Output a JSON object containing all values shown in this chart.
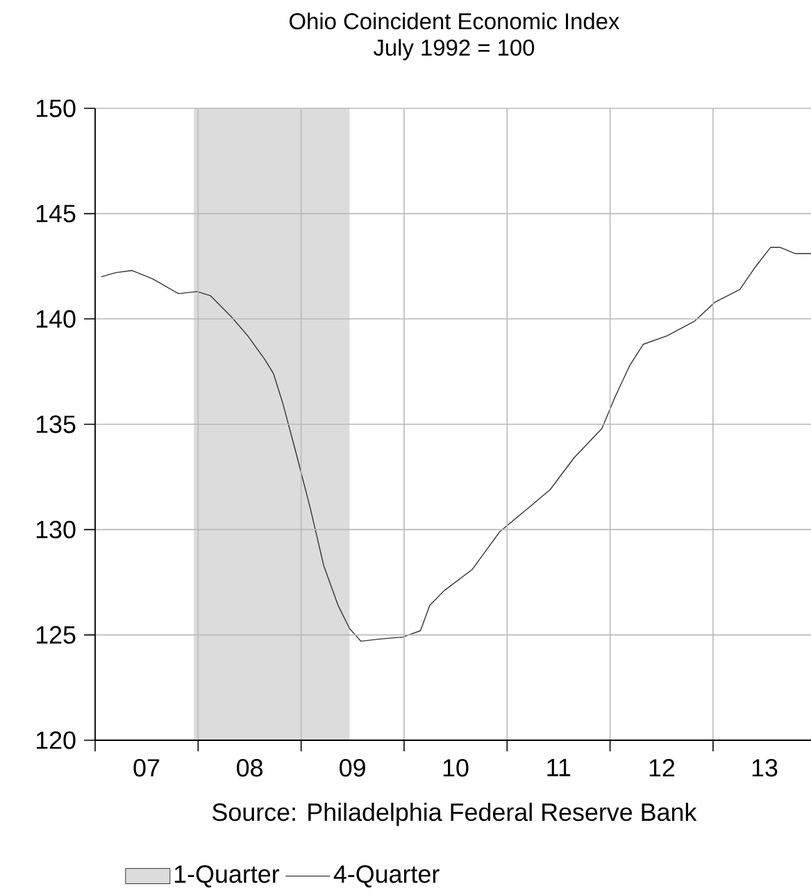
{
  "chart_data": {
    "type": "line",
    "title": "Ohio Coincident Economic Index",
    "subtitle": "July 1992 = 100",
    "annotations": [
      "Source: Philadelphia Federal Reserve Bank"
    ],
    "series": [
      {
        "name": "4-Quarter",
        "color": "#333333",
        "x": [
          "2007-01-23",
          "2007-03-15",
          "2007-05-12",
          "2007-07-24",
          "2007-10-24",
          "2007-12-28",
          "2008-02-14",
          "2008-04-28",
          "2008-06-25",
          "2008-08-23",
          "2008-09-24",
          "2008-10-27",
          "2008-12-14",
          "2009-02-03",
          "2009-03-22",
          "2009-05-12",
          "2009-06-22",
          "2009-08-01",
          "2009-10-05",
          "2009-12-28",
          "2010-02-28",
          "2010-04-02",
          "2010-05-23",
          "2010-08-30",
          "2010-12-06",
          "2011-03-15",
          "2011-06-03",
          "2011-08-26",
          "2011-12-03",
          "2012-01-19",
          "2012-03-11",
          "2012-04-28",
          "2012-07-21",
          "2012-10-27",
          "2013-01-08",
          "2013-04-06",
          "2013-05-27",
          "2013-07-24",
          "2013-08-26",
          "2013-10-20",
          "2013-12-14"
        ],
        "values": [
          142.0,
          142.2,
          142.3,
          141.9,
          141.2,
          141.3,
          141.1,
          140.1,
          139.2,
          138.1,
          137.4,
          136.0,
          133.6,
          131.0,
          128.3,
          126.4,
          125.3,
          124.7,
          124.8,
          124.9,
          125.2,
          126.4,
          127.1,
          128.1,
          129.9,
          131.0,
          131.9,
          133.4,
          134.8,
          136.3,
          137.8,
          138.8,
          139.2,
          139.9,
          140.8,
          141.4,
          142.4,
          143.4,
          143.4,
          143.1,
          143.1
        ]
      }
    ],
    "bands": [
      {
        "axis": "x",
        "from": "2007-12-17",
        "to": "2009-06-22",
        "label": "1-Quarter",
        "color": "#dcdcdc"
      }
    ],
    "xlim": [
      "2007-01-01",
      "2013-12-14"
    ],
    "xticks": [
      {
        "value": "2007-01-01",
        "label": null
      },
      {
        "value": "2007-07-02",
        "label": "07"
      },
      {
        "value": "2008-01-01",
        "label": null
      },
      {
        "value": "2008-07-02",
        "label": "08"
      },
      {
        "value": "2009-01-01",
        "label": null
      },
      {
        "value": "2009-07-02",
        "label": "09"
      },
      {
        "value": "2010-01-01",
        "label": null
      },
      {
        "value": "2010-07-02",
        "label": "10"
      },
      {
        "value": "2011-01-01",
        "label": null
      },
      {
        "value": "2011-07-02",
        "label": "11"
      },
      {
        "value": "2012-01-01",
        "label": null
      },
      {
        "value": "2012-07-02",
        "label": "12"
      },
      {
        "value": "2013-01-01",
        "label": null
      },
      {
        "value": "2013-07-02",
        "label": "13"
      }
    ],
    "ylim": [
      120,
      150
    ],
    "yticks": [
      120,
      125,
      130,
      135,
      140,
      145,
      150
    ],
    "grid": true,
    "legend": "bottom",
    "marker": "none",
    "line_style": "solid"
  }
}
